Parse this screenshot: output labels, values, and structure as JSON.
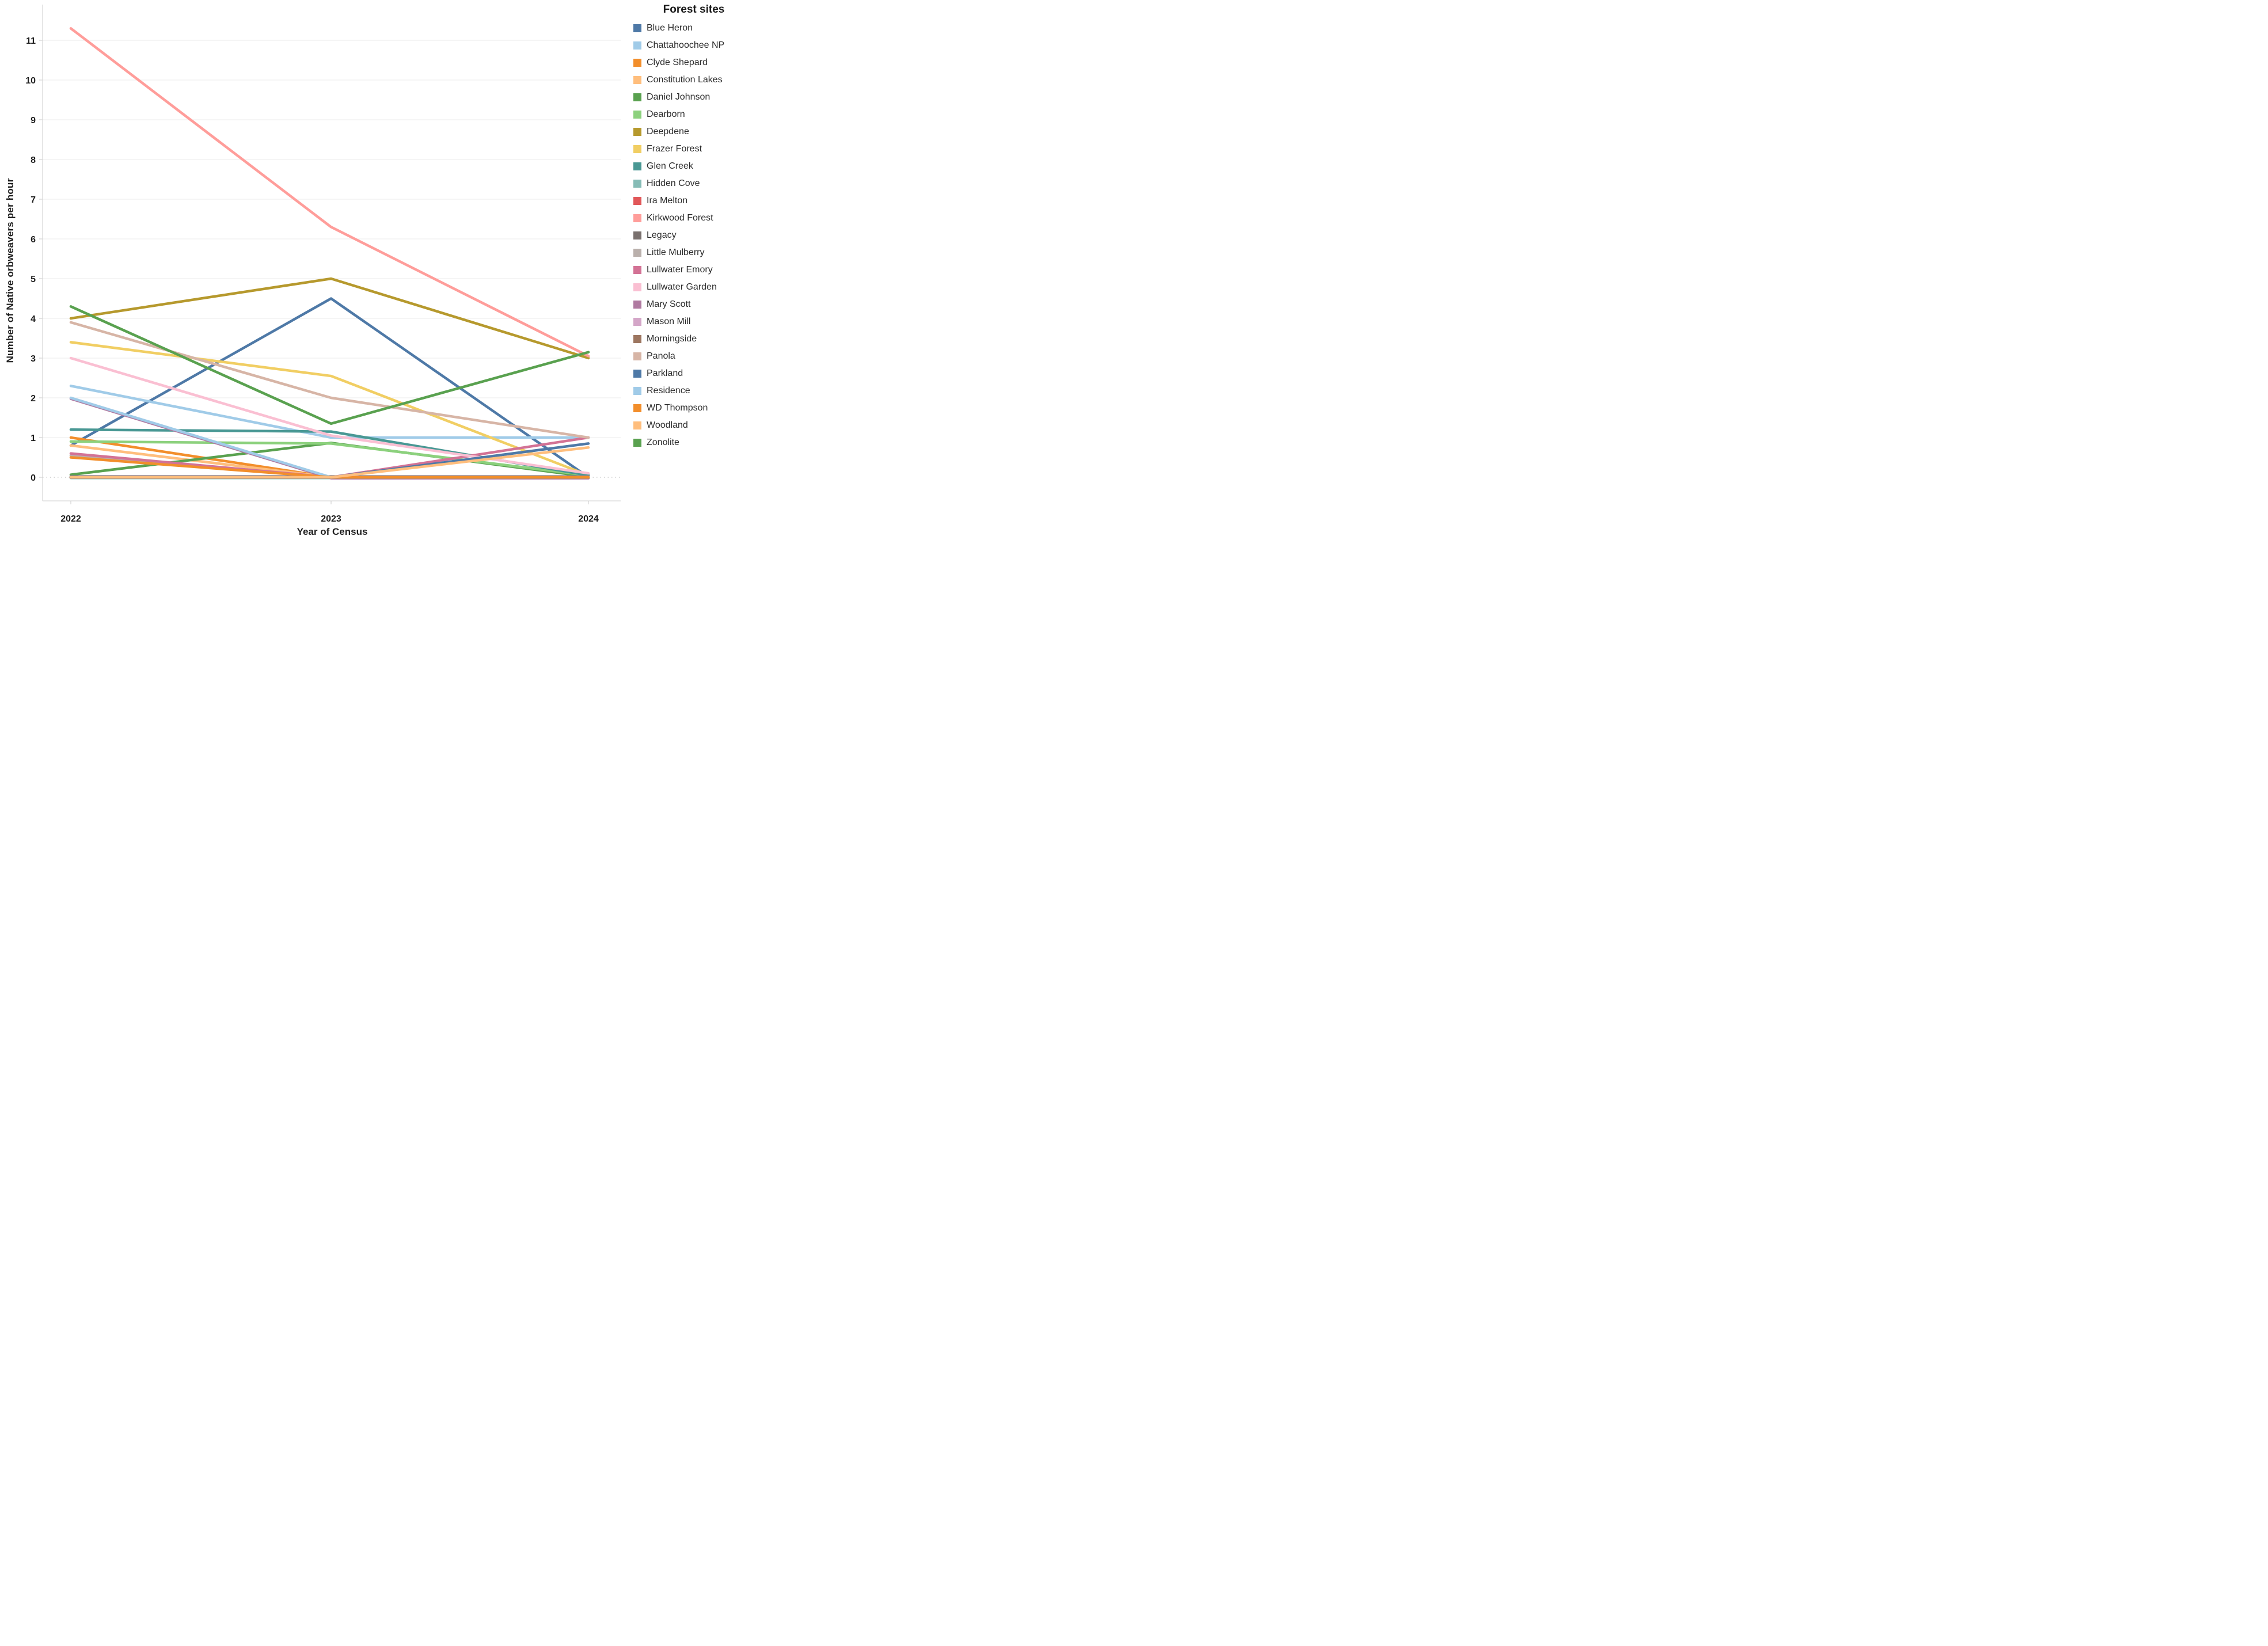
{
  "chart": {
    "legend_title": "Forest sites",
    "x_axis_title": "Year of Census",
    "y_axis_title": "Number of Native orbweavers per hour"
  },
  "chart_data": {
    "type": "line",
    "title": "",
    "xlabel": "Year of Census",
    "ylabel": "Number of Native orbweavers per hour",
    "x": [
      2022,
      2023,
      2024
    ],
    "x_tick_labels": [
      "2022",
      "2023",
      "2024"
    ],
    "y_ticks": [
      0,
      1,
      2,
      3,
      4,
      5,
      6,
      7,
      8,
      9,
      10,
      11
    ],
    "ylim": [
      -0.6,
      11.9
    ],
    "grid": "horizontal-only",
    "zero_line_style": "dotted",
    "legend_position": "right",
    "legend_title": "Forest sites",
    "series": [
      {
        "name": "Blue Heron",
        "color": "#4e79a7",
        "values": [
          0.8,
          4.5,
          0
        ]
      },
      {
        "name": "Chattahoochee NP",
        "color": "#a0cbe8",
        "values": [
          2.3,
          1.0,
          1.0
        ]
      },
      {
        "name": "Clyde Shepard",
        "color": "#f28e2b",
        "values": [
          1.0,
          0,
          0
        ]
      },
      {
        "name": "Constitution Lakes",
        "color": "#ffbe7d",
        "values": [
          0.8,
          0,
          0
        ]
      },
      {
        "name": "Daniel Johnson",
        "color": "#59a14f",
        "values": [
          0.05,
          0.85,
          0
        ]
      },
      {
        "name": "Dearborn",
        "color": "#8cd17d",
        "values": [
          0.9,
          0.85,
          0.05
        ]
      },
      {
        "name": "Deepdene",
        "color": "#b6992d",
        "values": [
          4.0,
          5.0,
          3.0
        ]
      },
      {
        "name": "Frazer Forest",
        "color": "#f1ce63",
        "values": [
          3.4,
          2.55,
          0.05
        ]
      },
      {
        "name": "Glen Creek",
        "color": "#499894",
        "values": [
          1.2,
          1.15,
          0.05
        ]
      },
      {
        "name": "Hidden Cove",
        "color": "#86bcb6",
        "values": [
          0,
          0,
          0
        ]
      },
      {
        "name": "Ira Melton",
        "color": "#e15759",
        "values": [
          0,
          0,
          0
        ]
      },
      {
        "name": "Kirkwood Forest",
        "color": "#ff9d9a",
        "values": [
          11.3,
          6.3,
          3.05
        ]
      },
      {
        "name": "Legacy",
        "color": "#79706e",
        "values": [
          0,
          0,
          0
        ]
      },
      {
        "name": "Little Mulberry",
        "color": "#bab0ac",
        "values": [
          0.55,
          0,
          0
        ]
      },
      {
        "name": "Lullwater Emory",
        "color": "#d37295",
        "values": [
          0.6,
          0,
          1.0
        ]
      },
      {
        "name": "Lullwater Garden",
        "color": "#fabfd2",
        "values": [
          3.0,
          1.05,
          0.1
        ]
      },
      {
        "name": "Mary Scott",
        "color": "#b07aa1",
        "values": [
          2.0,
          0,
          0
        ]
      },
      {
        "name": "Mason Mill",
        "color": "#d4a6c8",
        "values": [
          0,
          0,
          0
        ]
      },
      {
        "name": "Morningside",
        "color": "#9d7660",
        "values": [
          0,
          0,
          0
        ]
      },
      {
        "name": "Panola",
        "color": "#d7b5a6",
        "values": [
          3.9,
          2.0,
          1.0
        ]
      },
      {
        "name": "Parkland",
        "color": "#4e79a7",
        "values": [
          0,
          0,
          0.85
        ]
      },
      {
        "name": "Residence",
        "color": "#a0cbe8",
        "values": [
          2.0,
          0,
          0
        ]
      },
      {
        "name": "WD Thompson",
        "color": "#f28e2b",
        "values": [
          0.5,
          0,
          0
        ]
      },
      {
        "name": "Woodland",
        "color": "#ffbe7d",
        "values": [
          0,
          0,
          0.75
        ]
      },
      {
        "name": "Zonolite",
        "color": "#59a14f",
        "values": [
          4.3,
          1.35,
          3.15
        ]
      }
    ]
  }
}
